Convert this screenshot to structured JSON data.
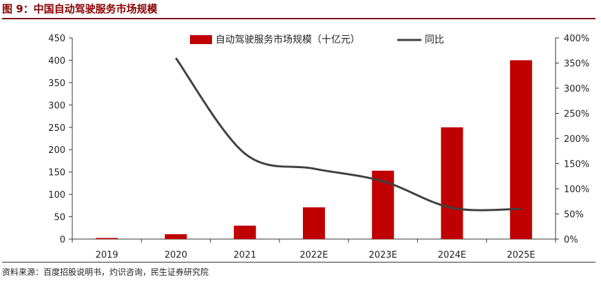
{
  "figure": {
    "title": "图 9：中国自动驾驶服务市场规模",
    "source": "资料来源：百度招股说明书，灼识咨询，民生证券研究院"
  },
  "chart_data": {
    "type": "bar",
    "categories": [
      "2019",
      "2020",
      "2021",
      "2022E",
      "2023E",
      "2024E",
      "2025E"
    ],
    "series": [
      {
        "name": "自动驾驶服务市场规模（十亿元）",
        "type": "bar",
        "axis": "left",
        "color": "#c00000",
        "values": [
          2.5,
          11,
          30,
          71,
          153,
          250,
          400
        ]
      },
      {
        "name": "同比",
        "type": "line",
        "axis": "right",
        "color": "#404040",
        "values": [
          null,
          360,
          170,
          140,
          115,
          62,
          60
        ]
      }
    ],
    "y_left": {
      "min": 0,
      "max": 450,
      "ticks": [
        0,
        50,
        100,
        150,
        200,
        250,
        300,
        350,
        400,
        450
      ]
    },
    "y_right": {
      "min": 0,
      "max": 400,
      "ticks": [
        "0%",
        "50%",
        "100%",
        "150%",
        "200%",
        "250%",
        "300%",
        "350%",
        "400%"
      ]
    },
    "legend_position": "top",
    "grid": false
  }
}
